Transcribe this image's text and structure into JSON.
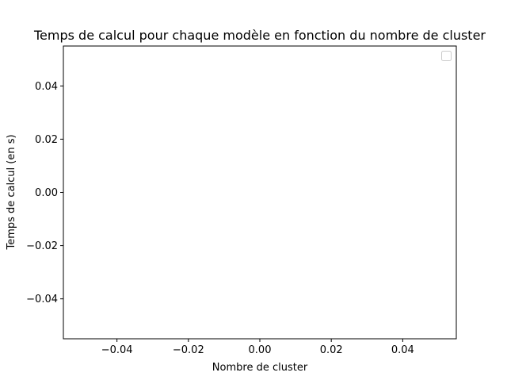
{
  "chart_data": {
    "type": "line",
    "title": "Temps de calcul pour chaque modèle en fonction du nombre de cluster",
    "xlabel": "Nombre de cluster",
    "ylabel": "Temps de calcul (en s)",
    "xlim": [
      -0.055,
      0.055
    ],
    "ylim": [
      -0.055,
      0.055
    ],
    "xticks": [
      -0.04,
      -0.02,
      0.0,
      0.02,
      0.04
    ],
    "yticks": [
      -0.04,
      -0.02,
      0.0,
      0.02,
      0.04
    ],
    "xtick_labels": [
      "−0.04",
      "−0.02",
      "0.00",
      "0.02",
      "0.04"
    ],
    "ytick_labels": [
      "−0.04",
      "−0.02",
      "0.00",
      "0.02",
      "0.04"
    ],
    "series": [],
    "legend": {
      "location": "top-right",
      "entries": []
    },
    "grid": false
  }
}
